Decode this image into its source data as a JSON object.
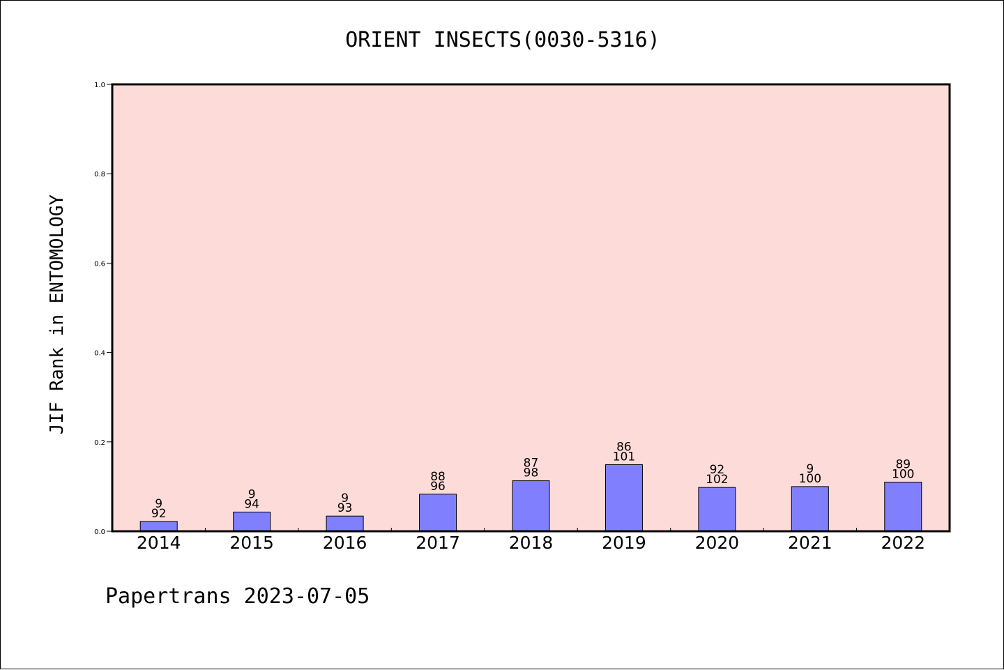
{
  "chart_data": {
    "type": "bar",
    "title": "ORIENT INSECTS(0030-5316)",
    "ylabel": "JIF Rank in ENTOMOLOGY",
    "xlabel": "",
    "ylim": [
      0,
      1.0
    ],
    "yticks": [
      "0.0",
      "0.2",
      "0.4",
      "0.6",
      "0.8",
      "1.0"
    ],
    "categories": [
      "2014",
      "2015",
      "2016",
      "2017",
      "2018",
      "2019",
      "2020",
      "2021",
      "2022"
    ],
    "values": [
      0.022,
      0.043,
      0.034,
      0.083,
      0.113,
      0.149,
      0.098,
      0.1,
      0.11
    ],
    "rank_labels": [
      "9",
      "9",
      "9",
      "88",
      "87",
      "86",
      "92",
      "9",
      "89"
    ],
    "total_labels": [
      "92",
      "94",
      "93",
      "96",
      "98",
      "101",
      "102",
      "100",
      "100"
    ],
    "grid": false,
    "legend": "none"
  },
  "footer": "Papertrans 2023-07-05",
  "colors": {
    "plot_background": "#fddbd8",
    "bar_fill": "#8080ff",
    "bar_stroke": "#000000",
    "text": "#000000"
  }
}
